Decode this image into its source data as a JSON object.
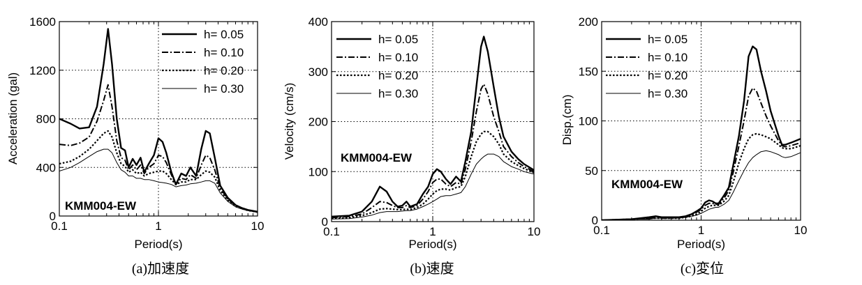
{
  "chart_data": [
    {
      "id": "acc",
      "type": "line",
      "caption": "(a)加速度",
      "xlabel": "Period(s)",
      "ylabel": "Acceleration (gal)",
      "xscale": "log",
      "xlim": [
        0.1,
        10
      ],
      "ylim": [
        0,
        1600
      ],
      "xticks": [
        0.1,
        1,
        10
      ],
      "xtick_labels": [
        "0.1",
        "1",
        "10"
      ],
      "yticks": [
        0,
        400,
        800,
        1200,
        1600
      ],
      "ytick_labels": [
        "0",
        "400",
        "800",
        "1200",
        "1600"
      ],
      "grid": "dotted",
      "legend_position": "top-right",
      "annotation": "KMM004-EW",
      "series": [
        {
          "name": "h= 0.05",
          "style": "solid-thick",
          "x": [
            0.1,
            0.13,
            0.16,
            0.2,
            0.24,
            0.28,
            0.31,
            0.34,
            0.38,
            0.42,
            0.46,
            0.5,
            0.55,
            0.6,
            0.66,
            0.72,
            0.8,
            0.9,
            1.0,
            1.1,
            1.2,
            1.35,
            1.5,
            1.7,
            1.9,
            2.1,
            2.4,
            2.7,
            3.0,
            3.3,
            3.7,
            4.2,
            5,
            6,
            7,
            8,
            10
          ],
          "y": [
            800,
            760,
            720,
            730,
            900,
            1250,
            1540,
            1250,
            800,
            560,
            540,
            400,
            470,
            420,
            480,
            360,
            430,
            500,
            640,
            610,
            520,
            360,
            260,
            350,
            330,
            400,
            330,
            550,
            700,
            680,
            480,
            250,
            150,
            90,
            65,
            50,
            35
          ]
        },
        {
          "name": "h= 0.10",
          "style": "dash-dot",
          "x": [
            0.1,
            0.13,
            0.16,
            0.2,
            0.24,
            0.28,
            0.31,
            0.34,
            0.38,
            0.42,
            0.46,
            0.5,
            0.55,
            0.6,
            0.66,
            0.72,
            0.8,
            0.9,
            1.0,
            1.1,
            1.2,
            1.35,
            1.5,
            1.7,
            1.9,
            2.1,
            2.4,
            2.7,
            3.0,
            3.3,
            3.7,
            4.2,
            5,
            6,
            7,
            8,
            10
          ],
          "y": [
            590,
            580,
            600,
            650,
            780,
            950,
            1080,
            900,
            620,
            480,
            460,
            380,
            420,
            380,
            420,
            350,
            400,
            430,
            500,
            490,
            440,
            340,
            260,
            310,
            300,
            340,
            310,
            420,
            500,
            480,
            380,
            230,
            140,
            85,
            62,
            48,
            33
          ]
        },
        {
          "name": "h= 0.20",
          "style": "dotted",
          "x": [
            0.1,
            0.13,
            0.16,
            0.2,
            0.24,
            0.28,
            0.31,
            0.34,
            0.38,
            0.42,
            0.46,
            0.5,
            0.55,
            0.6,
            0.66,
            0.72,
            0.8,
            0.9,
            1.0,
            1.1,
            1.2,
            1.35,
            1.5,
            1.7,
            1.9,
            2.1,
            2.4,
            2.7,
            3.0,
            3.3,
            3.7,
            4.2,
            5,
            6,
            7,
            8,
            10
          ],
          "y": [
            430,
            450,
            490,
            550,
            620,
            680,
            700,
            650,
            520,
            430,
            410,
            360,
            380,
            350,
            360,
            330,
            350,
            360,
            370,
            370,
            350,
            300,
            260,
            280,
            280,
            300,
            300,
            340,
            370,
            360,
            320,
            210,
            130,
            80,
            60,
            46,
            32
          ]
        },
        {
          "name": "h= 0.30",
          "style": "solid-thin",
          "x": [
            0.1,
            0.13,
            0.16,
            0.2,
            0.24,
            0.28,
            0.31,
            0.34,
            0.38,
            0.42,
            0.46,
            0.5,
            0.55,
            0.6,
            0.66,
            0.72,
            0.8,
            0.9,
            1.0,
            1.1,
            1.2,
            1.35,
            1.5,
            1.7,
            1.9,
            2.1,
            2.4,
            2.7,
            3.0,
            3.3,
            3.7,
            4.2,
            5,
            6,
            7,
            8,
            10
          ],
          "y": [
            370,
            400,
            440,
            490,
            530,
            550,
            550,
            520,
            440,
            380,
            360,
            330,
            330,
            310,
            310,
            300,
            300,
            290,
            280,
            275,
            270,
            260,
            240,
            250,
            255,
            265,
            270,
            280,
            290,
            290,
            270,
            190,
            120,
            75,
            56,
            44,
            30
          ]
        }
      ]
    },
    {
      "id": "vel",
      "type": "line",
      "caption": "(b)速度",
      "xlabel": "Period(s)",
      "ylabel": "Velocity (cm/s)",
      "xscale": "log",
      "xlim": [
        0.1,
        10
      ],
      "ylim": [
        0,
        400
      ],
      "xticks": [
        0.1,
        1,
        10
      ],
      "xtick_labels": [
        "0.1",
        "1",
        "10"
      ],
      "yticks": [
        0,
        100,
        200,
        300,
        400
      ],
      "ytick_labels": [
        "0",
        "100",
        "200",
        "300",
        "400"
      ],
      "grid": "dotted",
      "legend_position": "top-left",
      "annotation": "KMM004-EW",
      "series": [
        {
          "name": "h= 0.05",
          "style": "solid-thick",
          "x": [
            0.1,
            0.15,
            0.2,
            0.25,
            0.3,
            0.35,
            0.4,
            0.45,
            0.5,
            0.55,
            0.6,
            0.7,
            0.8,
            0.9,
            1.0,
            1.1,
            1.2,
            1.35,
            1.5,
            1.7,
            1.9,
            2.1,
            2.4,
            2.7,
            3.0,
            3.2,
            3.5,
            4.0,
            4.5,
            5,
            6,
            7,
            8,
            10
          ],
          "y": [
            10,
            12,
            20,
            40,
            70,
            60,
            40,
            30,
            32,
            40,
            30,
            35,
            55,
            70,
            95,
            105,
            100,
            85,
            75,
            90,
            80,
            120,
            180,
            270,
            350,
            370,
            340,
            270,
            210,
            170,
            140,
            125,
            115,
            103
          ]
        },
        {
          "name": "h= 0.10",
          "style": "dash-dot",
          "x": [
            0.1,
            0.15,
            0.2,
            0.25,
            0.3,
            0.35,
            0.4,
            0.45,
            0.5,
            0.55,
            0.6,
            0.7,
            0.8,
            0.9,
            1.0,
            1.1,
            1.2,
            1.35,
            1.5,
            1.7,
            1.9,
            2.1,
            2.4,
            2.7,
            3.0,
            3.2,
            3.5,
            4.0,
            4.5,
            5,
            6,
            7,
            8,
            10
          ],
          "y": [
            8,
            10,
            15,
            28,
            40,
            38,
            32,
            28,
            28,
            32,
            28,
            32,
            45,
            60,
            78,
            85,
            85,
            75,
            70,
            78,
            75,
            105,
            160,
            220,
            265,
            275,
            255,
            210,
            180,
            150,
            130,
            118,
            110,
            100
          ]
        },
        {
          "name": "h= 0.20",
          "style": "dotted",
          "x": [
            0.1,
            0.15,
            0.2,
            0.25,
            0.3,
            0.35,
            0.4,
            0.45,
            0.5,
            0.55,
            0.6,
            0.7,
            0.8,
            0.9,
            1.0,
            1.1,
            1.2,
            1.35,
            1.5,
            1.7,
            1.9,
            2.1,
            2.4,
            2.7,
            3.0,
            3.2,
            3.5,
            4.0,
            4.5,
            5,
            6,
            7,
            8,
            10
          ],
          "y": [
            6,
            8,
            12,
            18,
            25,
            26,
            25,
            24,
            24,
            25,
            24,
            28,
            35,
            45,
            55,
            62,
            65,
            65,
            63,
            68,
            70,
            90,
            130,
            160,
            175,
            180,
            180,
            170,
            155,
            135,
            120,
            112,
            106,
            98
          ]
        },
        {
          "name": "h= 0.30",
          "style": "solid-thin",
          "x": [
            0.1,
            0.15,
            0.2,
            0.25,
            0.3,
            0.35,
            0.4,
            0.45,
            0.5,
            0.55,
            0.6,
            0.7,
            0.8,
            0.9,
            1.0,
            1.1,
            1.2,
            1.35,
            1.5,
            1.7,
            1.9,
            2.1,
            2.4,
            2.7,
            3.0,
            3.2,
            3.5,
            4.0,
            4.5,
            5,
            6,
            7,
            8,
            10
          ],
          "y": [
            5,
            6,
            9,
            13,
            18,
            20,
            20,
            20,
            21,
            22,
            22,
            25,
            30,
            35,
            40,
            45,
            50,
            52,
            52,
            55,
            58,
            70,
            95,
            115,
            125,
            130,
            135,
            135,
            130,
            120,
            110,
            105,
            100,
            95
          ]
        }
      ]
    },
    {
      "id": "disp",
      "type": "line",
      "caption": "(c)変位",
      "xlabel": "Period(s)",
      "ylabel": "Disp.(cm)",
      "xscale": "log",
      "xlim": [
        0.1,
        10
      ],
      "ylim": [
        0,
        200
      ],
      "xticks": [
        0.1,
        1,
        10
      ],
      "xtick_labels": [
        "0.1",
        "1",
        "10"
      ],
      "yticks": [
        0,
        50,
        100,
        150,
        200
      ],
      "ytick_labels": [
        "0",
        "50",
        "100",
        "150",
        "200"
      ],
      "grid": "dotted",
      "legend_position": "top-left",
      "annotation": "KMM004-EW",
      "series": [
        {
          "name": "h= 0.05",
          "style": "solid-thick",
          "x": [
            0.1,
            0.2,
            0.3,
            0.35,
            0.4,
            0.5,
            0.6,
            0.7,
            0.8,
            0.9,
            1.0,
            1.1,
            1.2,
            1.3,
            1.4,
            1.5,
            1.7,
            1.9,
            2.1,
            2.4,
            2.7,
            3.0,
            3.3,
            3.6,
            4.0,
            4.5,
            5,
            6,
            6.5,
            7,
            8,
            10
          ],
          "y": [
            0,
            1,
            3,
            4,
            3,
            3,
            3,
            4,
            6,
            9,
            12,
            18,
            20,
            19,
            17,
            17,
            25,
            33,
            55,
            85,
            120,
            165,
            175,
            172,
            150,
            130,
            110,
            85,
            76,
            76,
            78,
            82
          ]
        },
        {
          "name": "h= 0.10",
          "style": "dash-dot",
          "x": [
            0.1,
            0.2,
            0.3,
            0.35,
            0.4,
            0.5,
            0.6,
            0.7,
            0.8,
            0.9,
            1.0,
            1.1,
            1.2,
            1.3,
            1.4,
            1.5,
            1.7,
            1.9,
            2.1,
            2.4,
            2.7,
            3.0,
            3.3,
            3.6,
            4.0,
            4.5,
            5,
            6,
            6.5,
            7,
            8,
            10
          ],
          "y": [
            0,
            1,
            2,
            3,
            2,
            2,
            3,
            3,
            5,
            8,
            11,
            15,
            17,
            17,
            16,
            16,
            22,
            30,
            48,
            75,
            100,
            125,
            133,
            130,
            118,
            105,
            95,
            80,
            75,
            74,
            75,
            78
          ]
        },
        {
          "name": "h= 0.20",
          "style": "dotted",
          "x": [
            0.1,
            0.2,
            0.3,
            0.35,
            0.4,
            0.5,
            0.6,
            0.7,
            0.8,
            0.9,
            1.0,
            1.1,
            1.2,
            1.3,
            1.4,
            1.5,
            1.7,
            1.9,
            2.1,
            2.4,
            2.7,
            3.0,
            3.3,
            3.6,
            4.0,
            4.5,
            5,
            6,
            6.5,
            7,
            8,
            10
          ],
          "y": [
            0,
            1,
            2,
            2,
            2,
            2,
            2,
            3,
            4,
            6,
            9,
            12,
            14,
            15,
            15,
            15,
            19,
            25,
            38,
            58,
            72,
            82,
            86,
            87,
            86,
            84,
            82,
            76,
            73,
            72,
            72,
            75
          ]
        },
        {
          "name": "h= 0.30",
          "style": "solid-thin",
          "x": [
            0.1,
            0.2,
            0.3,
            0.35,
            0.4,
            0.5,
            0.6,
            0.7,
            0.8,
            0.9,
            1.0,
            1.1,
            1.2,
            1.3,
            1.4,
            1.5,
            1.7,
            1.9,
            2.1,
            2.4,
            2.7,
            3.0,
            3.3,
            3.6,
            4.0,
            4.5,
            5,
            6,
            6.5,
            7,
            8,
            10
          ],
          "y": [
            0,
            1,
            1,
            2,
            2,
            2,
            2,
            3,
            4,
            5,
            7,
            9,
            11,
            12,
            13,
            13,
            16,
            20,
            28,
            40,
            50,
            58,
            63,
            66,
            69,
            70,
            69,
            66,
            64,
            63,
            64,
            68
          ]
        }
      ]
    }
  ]
}
